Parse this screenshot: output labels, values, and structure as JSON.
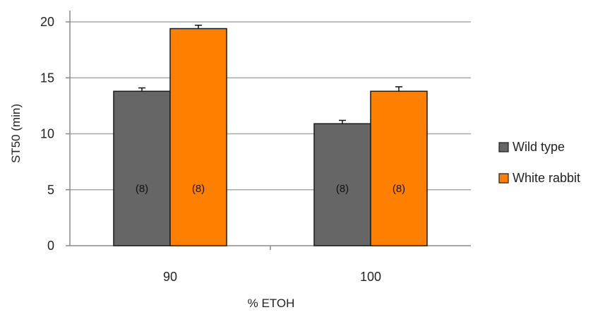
{
  "chart_data": {
    "type": "bar",
    "xlabel": "% ETOH",
    "ylabel": "ST50 (min)",
    "ylim": [
      0,
      20
    ],
    "yticks": [
      0,
      5,
      10,
      15,
      20
    ],
    "grid": true,
    "legend_position": "right",
    "categories": [
      "90",
      "100"
    ],
    "series": [
      {
        "name": "Wild type",
        "color": "#666666",
        "values": [
          13.8,
          10.9
        ],
        "errors": [
          0.3,
          0.3
        ],
        "labels": [
          "(8)",
          "(8)"
        ]
      },
      {
        "name": "White rabbit",
        "color": "#ff7f00",
        "values": [
          19.4,
          13.8
        ],
        "errors": [
          0.3,
          0.4
        ],
        "labels": [
          "(8)",
          "(8)"
        ]
      }
    ]
  }
}
